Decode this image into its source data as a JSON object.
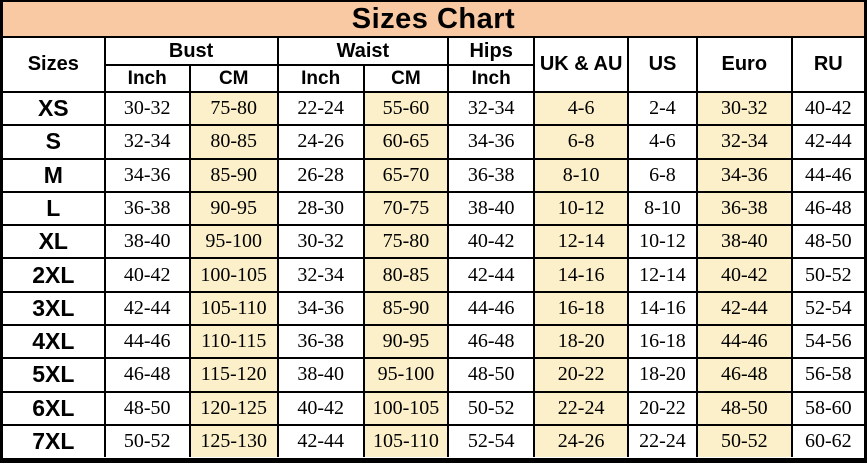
{
  "title": "Sizes Chart",
  "colors": {
    "title_bg": "#f8c9a3",
    "highlight_bg": "#fbf0c9",
    "border": "#000000",
    "text": "#000000",
    "row_bg": "#ffffff"
  },
  "header": {
    "sizes": "Sizes",
    "bust": "Bust",
    "waist": "Waist",
    "hips": "Hips",
    "uk_au": "UK & AU",
    "us": "US",
    "euro": "Euro",
    "ru": "RU",
    "inch": "Inch",
    "cm": "CM"
  },
  "chart_data": {
    "type": "table",
    "title": "Sizes Chart",
    "columns": [
      "Sizes",
      "Bust Inch",
      "Bust CM",
      "Waist Inch",
      "Waist CM",
      "Hips Inch",
      "UK & AU",
      "US",
      "Euro",
      "RU"
    ],
    "highlighted_columns": [
      "Bust CM",
      "Waist CM",
      "UK & AU",
      "Euro"
    ],
    "rows": [
      [
        "XS",
        "30-32",
        "75-80",
        "22-24",
        "55-60",
        "32-34",
        "4-6",
        "2-4",
        "30-32",
        "40-42"
      ],
      [
        "S",
        "32-34",
        "80-85",
        "24-26",
        "60-65",
        "34-36",
        "6-8",
        "4-6",
        "32-34",
        "42-44"
      ],
      [
        "M",
        "34-36",
        "85-90",
        "26-28",
        "65-70",
        "36-38",
        "8-10",
        "6-8",
        "34-36",
        "44-46"
      ],
      [
        "L",
        "36-38",
        "90-95",
        "28-30",
        "70-75",
        "38-40",
        "10-12",
        "8-10",
        "36-38",
        "46-48"
      ],
      [
        "XL",
        "38-40",
        "95-100",
        "30-32",
        "75-80",
        "40-42",
        "12-14",
        "10-12",
        "38-40",
        "48-50"
      ],
      [
        "2XL",
        "40-42",
        "100-105",
        "32-34",
        "80-85",
        "42-44",
        "14-16",
        "12-14",
        "40-42",
        "50-52"
      ],
      [
        "3XL",
        "42-44",
        "105-110",
        "34-36",
        "85-90",
        "44-46",
        "16-18",
        "14-16",
        "42-44",
        "52-54"
      ],
      [
        "4XL",
        "44-46",
        "110-115",
        "36-38",
        "90-95",
        "46-48",
        "18-20",
        "16-18",
        "44-46",
        "54-56"
      ],
      [
        "5XL",
        "46-48",
        "115-120",
        "38-40",
        "95-100",
        "48-50",
        "20-22",
        "18-20",
        "46-48",
        "56-58"
      ],
      [
        "6XL",
        "48-50",
        "120-125",
        "40-42",
        "100-105",
        "50-52",
        "22-24",
        "20-22",
        "48-50",
        "58-60"
      ],
      [
        "7XL",
        "50-52",
        "125-130",
        "42-44",
        "105-110",
        "52-54",
        "24-26",
        "22-24",
        "50-52",
        "60-62"
      ]
    ]
  }
}
